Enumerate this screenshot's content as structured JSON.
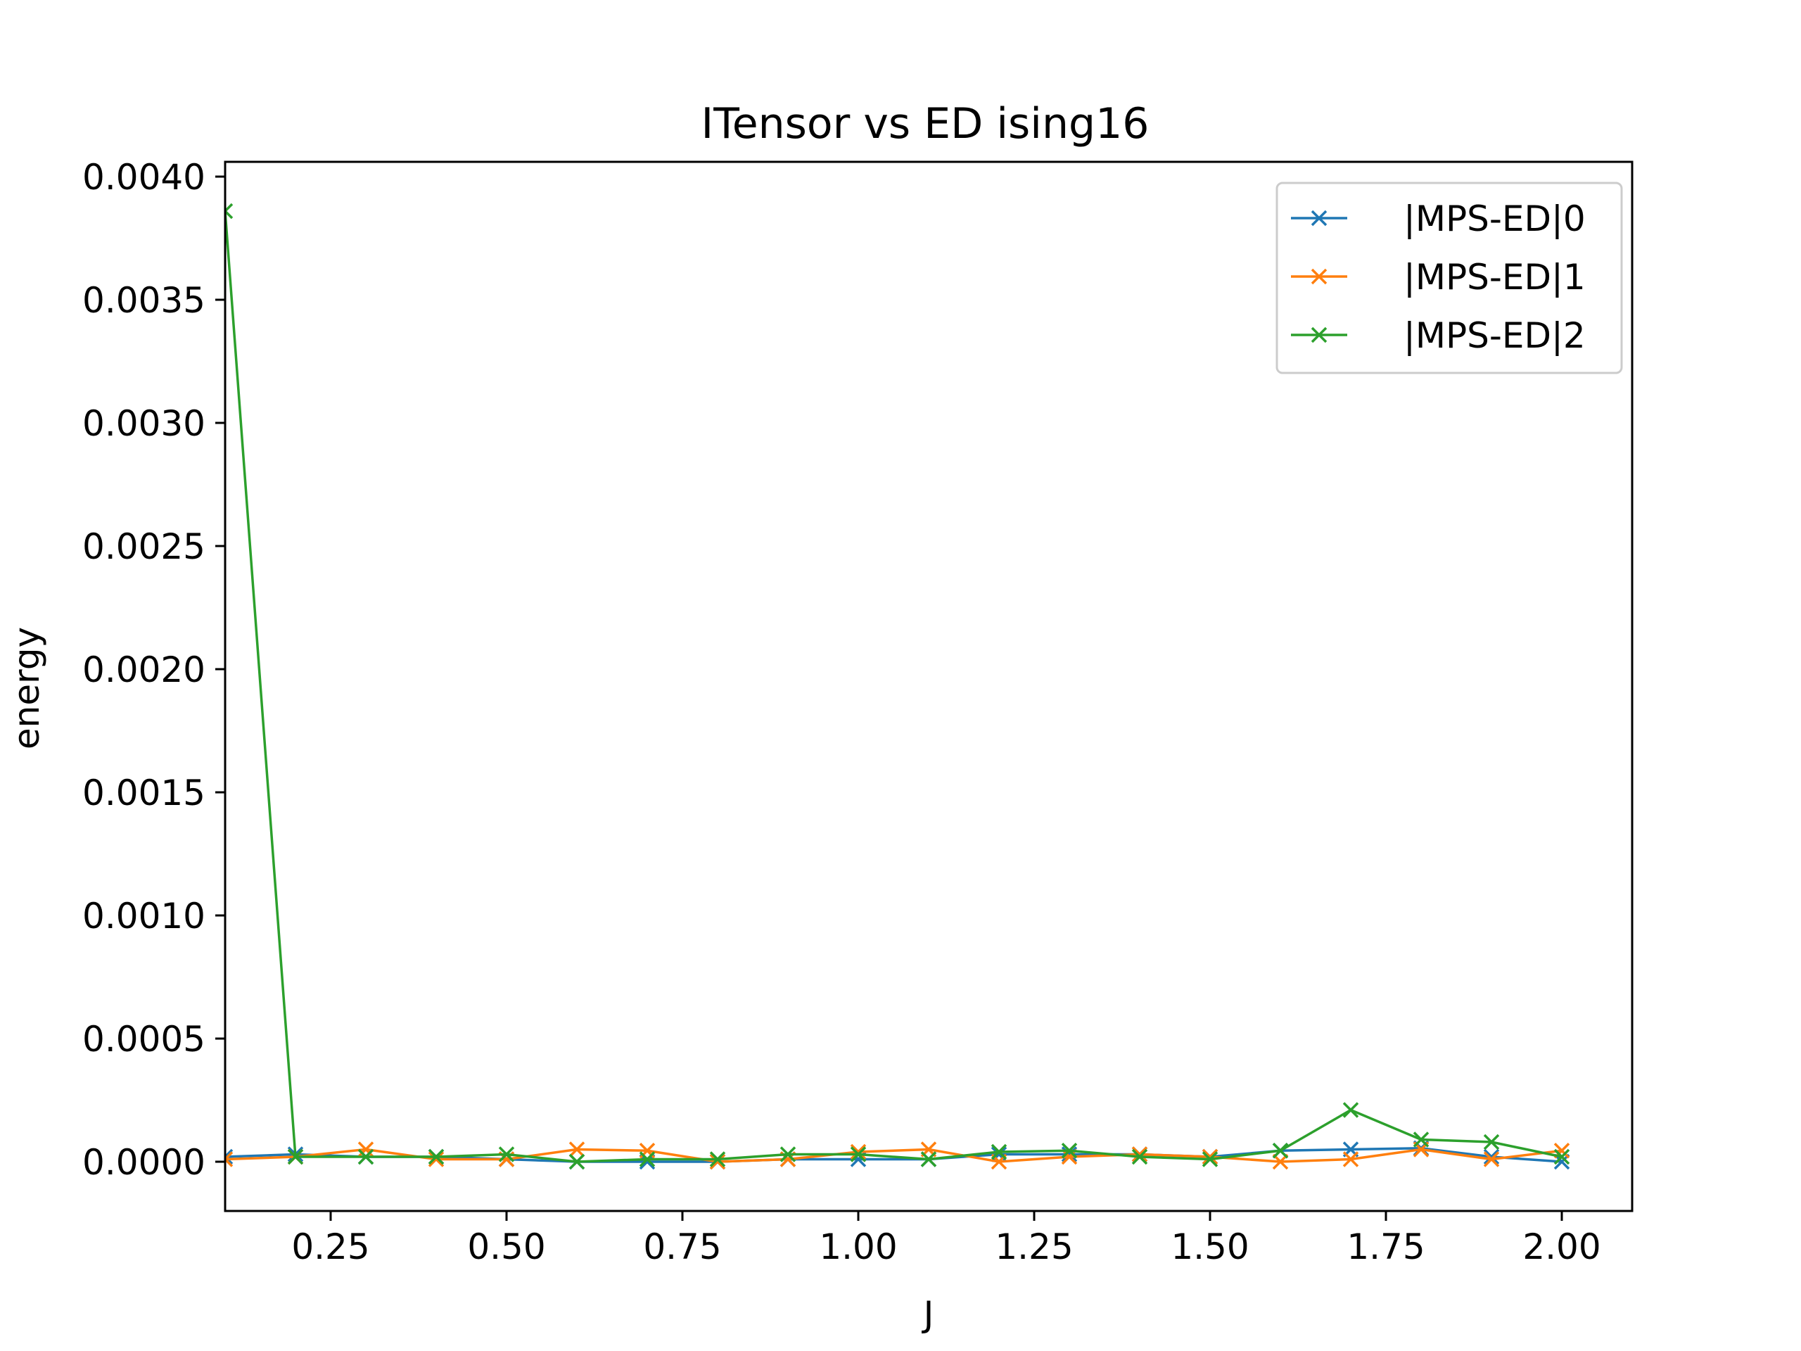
{
  "chart_data": {
    "type": "line",
    "title": "ITensor vs ED ising16",
    "xlabel": "J",
    "ylabel": "energy",
    "xlim": [
      0.1,
      2.1
    ],
    "ylim": [
      -0.0002,
      0.00406
    ],
    "x": [
      0.1,
      0.2,
      0.3,
      0.4,
      0.5,
      0.6,
      0.7,
      0.8,
      0.9,
      1.0,
      1.1,
      1.2,
      1.3,
      1.4,
      1.5,
      1.6,
      1.7,
      1.8,
      1.9,
      2.0
    ],
    "xticks": [
      "0.25",
      "0.50",
      "0.75",
      "1.00",
      "1.25",
      "1.50",
      "1.75",
      "2.00"
    ],
    "xtick_values": [
      0.25,
      0.5,
      0.75,
      1.0,
      1.25,
      1.5,
      1.75,
      2.0
    ],
    "yticks": [
      "0.0000",
      "0.0005",
      "0.0010",
      "0.0015",
      "0.0020",
      "0.0025",
      "0.0030",
      "0.0035",
      "0.0040"
    ],
    "ytick_values": [
      0,
      0.0005,
      0.001,
      0.0015,
      0.002,
      0.0025,
      0.003,
      0.0035,
      0.004
    ],
    "grid": false,
    "legend_position": "top-right",
    "series": [
      {
        "name": "|MPS-ED|0",
        "color": "#1f77b4",
        "values": [
          2e-05,
          3e-05,
          2e-05,
          2e-05,
          1e-05,
          0.0,
          0.0,
          0.0,
          1e-05,
          1e-05,
          1e-05,
          3e-05,
          3e-05,
          3e-05,
          2e-05,
          4.5e-05,
          5e-05,
          5.5e-05,
          2e-05,
          0.0
        ]
      },
      {
        "name": "|MPS-ED|1",
        "color": "#ff7f0e",
        "values": [
          1e-05,
          2e-05,
          5e-05,
          1e-05,
          1e-05,
          5e-05,
          4.5e-05,
          0.0,
          1e-05,
          4e-05,
          5e-05,
          0.0,
          2e-05,
          3e-05,
          2e-05,
          0.0,
          1e-05,
          5e-05,
          1e-05,
          4.5e-05
        ]
      },
      {
        "name": "|MPS-ED|2",
        "color": "#2ca02c",
        "values": [
          0.00386,
          2e-05,
          2e-05,
          2e-05,
          3e-05,
          0.0,
          1e-05,
          1e-05,
          3e-05,
          3e-05,
          1e-05,
          4e-05,
          4.5e-05,
          2e-05,
          1e-05,
          4.5e-05,
          0.00021,
          9e-05,
          8e-05,
          2e-05
        ]
      }
    ]
  }
}
